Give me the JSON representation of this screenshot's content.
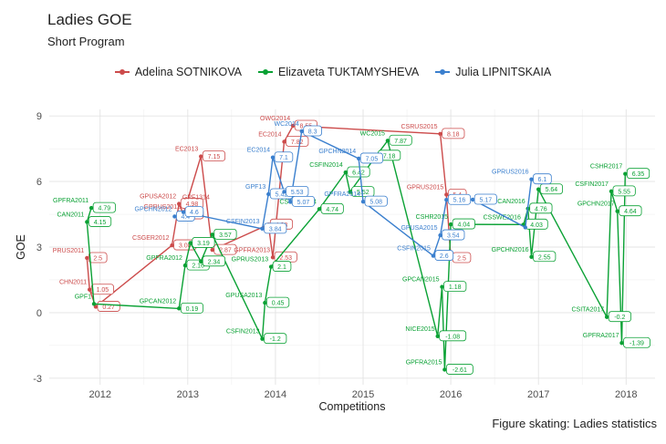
{
  "chart_data": {
    "type": "line",
    "title": "Ladies GOE",
    "subtitle": "Short Program",
    "caption": "Figure skating: Ladies statistics",
    "xlabel": "Competitions",
    "ylabel": "GOE",
    "xlim": [
      2011.42,
      2018.33
    ],
    "ylim": [
      -3.3,
      9.3
    ],
    "x_ticks": [
      2012,
      2013,
      2014,
      2015,
      2016,
      2017,
      2018
    ],
    "x_tick_labels": [
      "2012",
      "2013",
      "2014",
      "2015",
      "2016",
      "2017",
      "2018"
    ],
    "y_ticks": [
      -3,
      0,
      3,
      6,
      9
    ],
    "y_tick_labels": [
      "-3",
      "0",
      "3",
      "6",
      "9"
    ],
    "grid": true,
    "legend_position": "top",
    "series": [
      {
        "name": "Adelina SOTNIKOVA",
        "color": "#cc4b4b",
        "points": [
          {
            "x": 2011.85,
            "y": 2.5,
            "value": "2.5",
            "event": "PRUS2011"
          },
          {
            "x": 2011.88,
            "y": 1.05,
            "value": "1.05",
            "event": "CHN2011"
          },
          {
            "x": 2011.95,
            "y": 0.27,
            "value": "0.27",
            "event": ""
          },
          {
            "x": 2012.82,
            "y": 3.08,
            "value": "3.08",
            "event": "CSGER2012"
          },
          {
            "x": 2012.9,
            "y": 4.98,
            "value": "4.98",
            "event": "GPUSA2012"
          },
          {
            "x": 2012.95,
            "y": 4.5,
            "value": "4.5",
            "event": "GPRUS2012"
          },
          {
            "x": 2013.15,
            "y": 7.15,
            "value": "7.15",
            "event": "EC2013"
          },
          {
            "x": 2013.28,
            "y": 2.87,
            "value": "2.87",
            "event": ""
          },
          {
            "x": 2013.92,
            "y": 4.03,
            "value": "4.03",
            "event": ""
          },
          {
            "x": 2013.97,
            "y": 2.53,
            "value": "2.53",
            "event": "GPFRA2013"
          },
          {
            "x": 2014.1,
            "y": 7.82,
            "value": "7.82",
            "event": "EC2014"
          },
          {
            "x": 2014.2,
            "y": 8.55,
            "value": "8.55",
            "event": "OWG2014"
          },
          {
            "x": 2015.88,
            "y": 8.18,
            "value": "8.18",
            "event": "CSRUS2015"
          },
          {
            "x": 2015.95,
            "y": 5.4,
            "value": "5.4",
            "event": "GPRUS2015"
          },
          {
            "x": 2016.0,
            "y": 2.5,
            "value": "2.5",
            "event": ""
          }
        ]
      },
      {
        "name": "Elizaveta TUKTAMYSHEVA",
        "color": "#0aa134",
        "points": [
          {
            "x": 2011.9,
            "y": 4.79,
            "value": "4.79",
            "event": "GPFRA2011"
          },
          {
            "x": 2011.85,
            "y": 4.15,
            "value": "4.15",
            "event": "CAN2011"
          },
          {
            "x": 2011.93,
            "y": 0.4,
            "value": "",
            "event": "GPF1"
          },
          {
            "x": 2012.9,
            "y": 0.19,
            "value": "0.19",
            "event": "GPCAN2012"
          },
          {
            "x": 2012.97,
            "y": 2.16,
            "value": "2.16",
            "event": "GPFRA2012"
          },
          {
            "x": 2013.03,
            "y": 3.19,
            "value": "3.19",
            "event": ""
          },
          {
            "x": 2013.15,
            "y": 2.34,
            "value": "2.34",
            "event": ""
          },
          {
            "x": 2013.28,
            "y": 3.57,
            "value": "3.57",
            "event": ""
          },
          {
            "x": 2013.85,
            "y": -1.2,
            "value": "-1.2",
            "event": "CSFIN2013"
          },
          {
            "x": 2013.88,
            "y": 0.45,
            "value": "0.45",
            "event": "GPUSA2013"
          },
          {
            "x": 2013.95,
            "y": 2.1,
            "value": "2.1",
            "event": "GPRUS2013"
          },
          {
            "x": 2014.5,
            "y": 4.74,
            "value": "4.74",
            "event": "CSGER2014"
          },
          {
            "x": 2014.8,
            "y": 6.42,
            "value": "6.42",
            "event": "CSFIN2014"
          },
          {
            "x": 2014.85,
            "y": 5.52,
            "value": "5.52",
            "event": ""
          },
          {
            "x": 2015.15,
            "y": 7.18,
            "value": "7.18",
            "event": ""
          },
          {
            "x": 2015.28,
            "y": 7.87,
            "value": "7.87",
            "event": "WC2015"
          },
          {
            "x": 2015.85,
            "y": -1.08,
            "value": "-1.08",
            "event": "NICE2015"
          },
          {
            "x": 2015.9,
            "y": 1.18,
            "value": "1.18",
            "event": "GPCAN2015"
          },
          {
            "x": 2015.93,
            "y": -2.61,
            "value": "-2.61",
            "event": "GPFRA2015"
          },
          {
            "x": 2016.0,
            "y": 4.04,
            "value": "4.04",
            "event": "CSHR2015"
          },
          {
            "x": 2016.83,
            "y": 4.03,
            "value": "4.03",
            "event": "CSSWE2016"
          },
          {
            "x": 2016.88,
            "y": 4.76,
            "value": "4.76",
            "event": "GPCAN2016"
          },
          {
            "x": 2016.92,
            "y": 2.55,
            "value": "2.55",
            "event": "GPCHN2016"
          },
          {
            "x": 2017.0,
            "y": 5.64,
            "value": "5.64",
            "event": ""
          },
          {
            "x": 2017.78,
            "y": -0.2,
            "value": "-0.2",
            "event": "CSITA2017"
          },
          {
            "x": 2017.83,
            "y": 5.55,
            "value": "5.55",
            "event": "CSFIN2017"
          },
          {
            "x": 2017.9,
            "y": 4.64,
            "value": "4.64",
            "event": "GPCHN2017"
          },
          {
            "x": 2017.95,
            "y": -1.39,
            "value": "-1.39",
            "event": "GPFRA2017"
          },
          {
            "x": 2017.99,
            "y": 6.35,
            "value": "6.35",
            "event": "CSHR2017"
          }
        ]
      },
      {
        "name": "Julia LIPNITSKAIA",
        "color": "#3a7fce",
        "points": [
          {
            "x": 2012.85,
            "y": 4.4,
            "value": "4.4",
            "event": "GPCHN2012"
          },
          {
            "x": 2012.95,
            "y": 4.6,
            "value": "4.6",
            "event": ""
          },
          {
            "x": 2013.85,
            "y": 3.84,
            "value": "3.84",
            "event": "CSFIN2013"
          },
          {
            "x": 2013.92,
            "y": 5.42,
            "value": "5.42",
            "event": "GPF13"
          },
          {
            "x": 2013.97,
            "y": 7.1,
            "value": "7.1",
            "event": "EC2014"
          },
          {
            "x": 2014.1,
            "y": 5.53,
            "value": "5.53",
            "event": ""
          },
          {
            "x": 2014.17,
            "y": 5.07,
            "value": "5.07",
            "event": ""
          },
          {
            "x": 2014.3,
            "y": 8.3,
            "value": "8.3",
            "event": "WC2014"
          },
          {
            "x": 2014.95,
            "y": 7.05,
            "value": "7.05",
            "event": "GPCHN2014"
          },
          {
            "x": 2015.0,
            "y": 5.08,
            "value": "5.08",
            "event": "GPFRA2014"
          },
          {
            "x": 2015.8,
            "y": 2.6,
            "value": "2.6",
            "event": "CSFIN2015"
          },
          {
            "x": 2015.88,
            "y": 3.54,
            "value": "3.54",
            "event": "GPUSA2015"
          },
          {
            "x": 2015.95,
            "y": 5.16,
            "value": "5.16",
            "event": ""
          },
          {
            "x": 2016.25,
            "y": 5.17,
            "value": "5.17",
            "event": ""
          },
          {
            "x": 2016.85,
            "y": 3.9,
            "value": "",
            "event": ""
          },
          {
            "x": 2016.92,
            "y": 6.1,
            "value": "6.1",
            "event": "GPRUS2016"
          }
        ]
      }
    ],
    "extra_labels": [
      {
        "x": 2013.25,
        "y": 5.2,
        "text": "GPF1314",
        "color": "#cc4b4b"
      },
      {
        "x": 2012.7,
        "y": 0.9,
        "text": "",
        "color": "#0aa134"
      }
    ]
  }
}
